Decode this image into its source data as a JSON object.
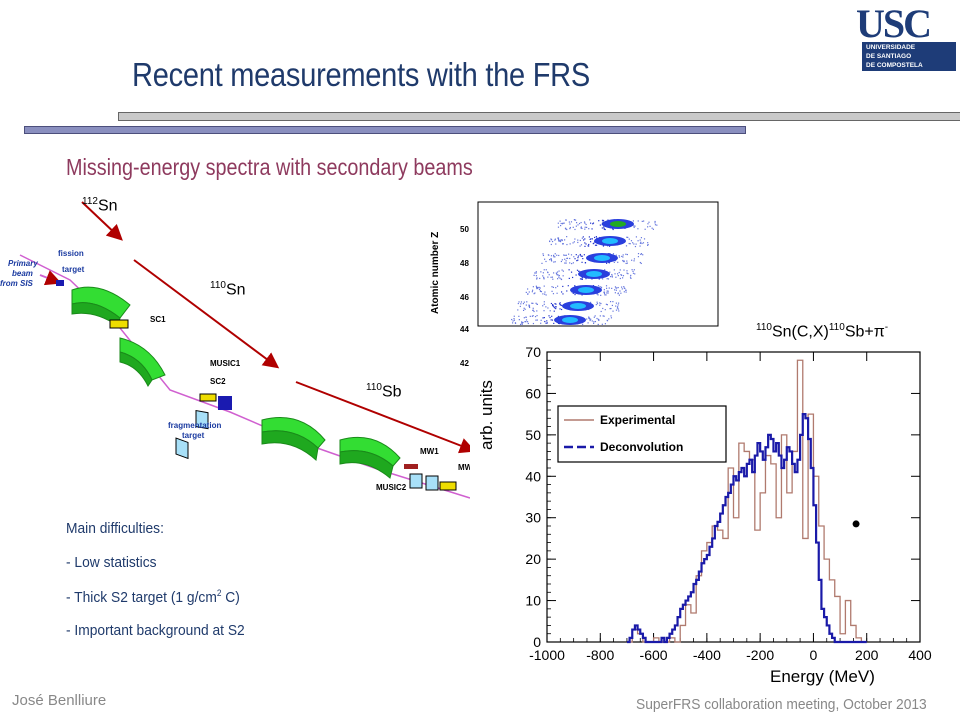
{
  "slide": {
    "title": "Recent measurements with the FRS",
    "subtitle": "Missing-energy spectra with secondary beams"
  },
  "logo": {
    "text": "USC",
    "line1": "UNIVERSIDADE",
    "line2": "DE SANTIAGO",
    "line3": "DE COMPOSTELA"
  },
  "isotopes": {
    "sn112": {
      "mass": "112",
      "symbol": "Sn"
    },
    "sn110": {
      "mass": "110",
      "symbol": "Sn"
    },
    "sb110": {
      "mass": "110",
      "symbol": "Sb"
    }
  },
  "beamline": {
    "primary_beam": "Primary beam from SIS",
    "fission_target": "fission target",
    "sc1": "SC1",
    "music1": "MUSIC1",
    "sc2": "SC2",
    "fragmentation_target": "fragmentation target",
    "mw1": "MW1",
    "mw": "MW",
    "music2": "MUSIC2"
  },
  "difficulties": {
    "heading": "Main difficulties:",
    "item1": "- Low statistics",
    "item2_pre": "- Thick S2 target (1 g/cm",
    "item2_sup": "2",
    "item2_post": " C)",
    "item3": "- Important background at S2"
  },
  "reaction": {
    "m1": "110",
    "part1": "Sn(C,X)",
    "m2": "110",
    "part2": "Sb+",
    "pi": "π",
    "charge": "-"
  },
  "zplot": {
    "ylabel": "Atomic number Z",
    "ticks": [
      "50",
      "48",
      "46",
      "44",
      "42"
    ]
  },
  "chart_data": {
    "type": "line",
    "xlabel": "Energy (MeV)",
    "ylabel": "arb. units",
    "xlim": [
      -1000,
      400
    ],
    "ylim": [
      0,
      70
    ],
    "xticks": [
      -1000,
      -800,
      -600,
      -400,
      -200,
      0,
      200,
      400
    ],
    "yticks": [
      0,
      10,
      20,
      30,
      40,
      50,
      60,
      70
    ],
    "legend_position": "top-left",
    "series": [
      {
        "name": "Experimental",
        "color": "#b07a6e",
        "bin_width": 20,
        "x_start": -700,
        "values": [
          0,
          3,
          2,
          0,
          0,
          1,
          0,
          0,
          1,
          0,
          4,
          9,
          7,
          16,
          22,
          24,
          28,
          27,
          25,
          42,
          30,
          48,
          46,
          44,
          27,
          36,
          45,
          43,
          30,
          50,
          36,
          46,
          68,
          25,
          55,
          40,
          28,
          20,
          15,
          11,
          2,
          10,
          4,
          1,
          0
        ]
      },
      {
        "name": "Deconvolution",
        "color": "#1a1aa8",
        "bin_width": 10,
        "x_start": -700,
        "values": [
          0,
          1,
          3,
          4,
          3,
          2,
          1,
          0,
          0,
          0,
          0,
          0,
          0,
          1,
          0,
          1,
          2,
          3,
          4,
          6,
          8,
          9,
          10,
          11,
          12,
          14,
          15,
          17,
          19,
          20,
          21,
          23,
          25,
          28,
          29,
          31,
          33,
          35,
          36,
          38,
          40,
          39,
          41,
          42,
          40,
          43,
          44,
          41,
          45,
          48,
          46,
          44,
          47,
          50,
          49,
          46,
          48,
          45,
          42,
          44,
          47,
          46,
          43,
          41,
          44,
          50,
          55,
          54,
          49,
          42,
          33,
          24,
          15,
          8,
          6,
          4,
          2,
          1,
          0,
          0,
          0,
          0,
          0,
          0,
          0,
          0,
          0,
          0,
          0,
          0
        ]
      }
    ],
    "annotation_point": {
      "x": 160,
      "y": 28.5
    }
  },
  "footer": {
    "author": "José Benlliure",
    "event": "SuperFRS collaboration meeting, October 2013"
  }
}
